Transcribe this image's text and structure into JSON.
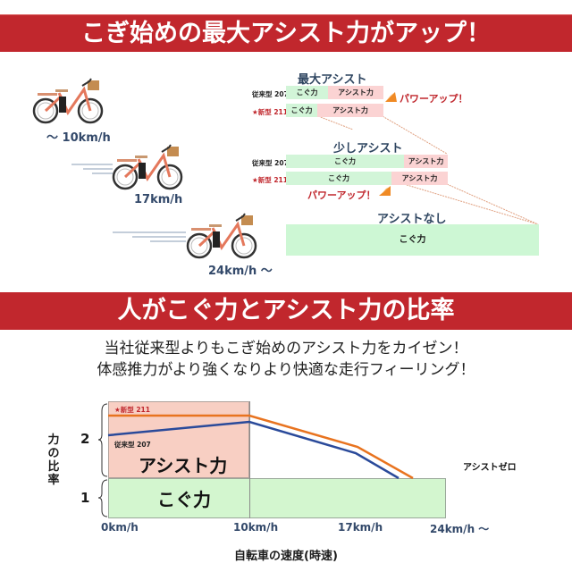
{
  "banners": {
    "top": "こぎ始めの最大アシスト力がアップ！",
    "middle": "人がこぐ力とアシスト力の比率"
  },
  "bikes": [
    {
      "speed": "～ 10km/h"
    },
    {
      "speed": "17km/h"
    },
    {
      "speed": "24km/h ～"
    }
  ],
  "assist_sections": [
    {
      "title": "最大アシスト",
      "rows": [
        {
          "label": "従来型 207",
          "pedal": "こぐ力",
          "assist": "アシスト力"
        },
        {
          "label": "★新型 211",
          "pedal": "こぐ力",
          "assist": "アシスト力"
        }
      ],
      "powerup": "パワーアップ！"
    },
    {
      "title": "少しアシスト",
      "rows": [
        {
          "label": "従来型 207",
          "pedal": "こぐ力",
          "assist": "アシスト力"
        },
        {
          "label": "★新型 211",
          "pedal": "こぐ力",
          "assist": "アシスト力"
        }
      ],
      "powerup": "パワーアップ！"
    },
    {
      "title": "アシストなし",
      "rows": [
        {
          "pedal": "こぐ力"
        }
      ]
    }
  ],
  "subtitle": {
    "line1": "当社従来型よりもこぎ始めのアシスト力をカイゼン！",
    "line2": "体感推力がより強くなりより快適な走行フィーリング！"
  },
  "chart": {
    "ylabel": "力の比率",
    "xlabel": "自転車の速度(時速)",
    "y_ticks": [
      "2",
      "1"
    ],
    "x_ticks": [
      "0km/h",
      "10km/h",
      "17km/h",
      "24km/h ～"
    ],
    "assist_area_label": "アシスト力",
    "pedal_area_label": "こぐ力",
    "assist_zero_label": "アシストゼロ",
    "series_new_label": "★新型 211",
    "series_old_label": "従来型 207"
  },
  "chart_data": {
    "type": "line",
    "title": "人がこぐ力とアシスト力の比率",
    "xlabel": "自転車の速度(時速)",
    "ylabel": "力の比率",
    "x": [
      0,
      10,
      17,
      24
    ],
    "x_tick_labels": [
      "0km/h",
      "10km/h",
      "17km/h",
      "24km/h ～"
    ],
    "y_ticks": [
      1,
      2
    ],
    "series": [
      {
        "name": "★新型 211",
        "color": "#e8731f",
        "points": [
          [
            0,
            2.0
          ],
          [
            10,
            2.0
          ],
          [
            17,
            1.7
          ],
          [
            20.5,
            1.0
          ]
        ]
      },
      {
        "name": "従来型 207",
        "color": "#2a4a9a",
        "points": [
          [
            0,
            1.8
          ],
          [
            10,
            1.95
          ],
          [
            17,
            1.65
          ],
          [
            19.5,
            1.0
          ]
        ]
      }
    ],
    "regions": [
      {
        "label": "アシスト力",
        "x_range": [
          0,
          10
        ],
        "y_range": [
          1,
          2.2
        ],
        "color": "#f8cfc3"
      },
      {
        "label": "こぐ力",
        "x_range": [
          0,
          24
        ],
        "y_range": [
          0,
          1
        ],
        "color": "#d3f6cf"
      }
    ],
    "annotations": [
      "アシストゼロ"
    ]
  },
  "colors": {
    "banner": "#c1272d",
    "pedal_green": "#d2f5d8",
    "assist_pink": "#fbd3d3",
    "new_red": "#c0272d",
    "speed_navy": "#33496a",
    "line_orange": "#e8731f",
    "line_blue": "#2a4a9a"
  }
}
